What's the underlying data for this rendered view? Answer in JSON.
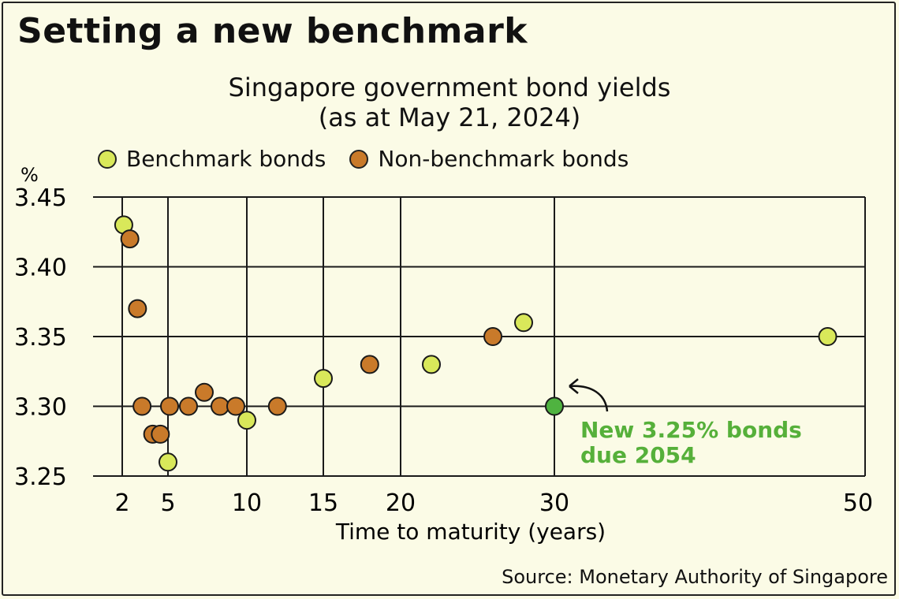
{
  "title": "Setting a new benchmark",
  "subtitle_line1": "Singapore government bond yields",
  "subtitle_line2": "(as at May 21, 2024)",
  "legend": {
    "benchmark": "Benchmark bonds",
    "non_benchmark": "Non-benchmark bonds"
  },
  "source": "Source: Monetary Authority of Singapore",
  "colors": {
    "benchmark": "#d9e85a",
    "non_benchmark": "#c97a2a",
    "highlight": "#4fb340",
    "annotation": "#56b03a"
  },
  "annotation": {
    "line1": "New 3.25% bonds",
    "line2": "due 2054"
  },
  "chart_data": {
    "type": "scatter",
    "xlabel": "Time to maturity (years)",
    "ylabel": "%",
    "xticks": [
      2,
      5,
      10,
      15,
      20,
      30,
      50
    ],
    "yticks": [
      "3.25",
      "3.30",
      "3.35",
      "3.40",
      "3.45"
    ],
    "ylim": [
      3.25,
      3.45
    ],
    "series": [
      {
        "name": "Benchmark bonds",
        "points": [
          [
            2.1,
            3.43
          ],
          [
            5,
            3.26
          ],
          [
            10,
            3.29
          ],
          [
            15,
            3.32
          ],
          [
            22,
            3.33
          ],
          [
            28,
            3.36
          ],
          [
            48,
            3.35
          ]
        ]
      },
      {
        "name": "Non-benchmark bonds",
        "points": [
          [
            2.5,
            3.42
          ],
          [
            3,
            3.37
          ],
          [
            3.3,
            3.3
          ],
          [
            4,
            3.28
          ],
          [
            4.5,
            3.28
          ],
          [
            5.1,
            3.3
          ],
          [
            6.3,
            3.3
          ],
          [
            7.3,
            3.31
          ],
          [
            8.3,
            3.3
          ],
          [
            9.3,
            3.3
          ],
          [
            12,
            3.3
          ],
          [
            18,
            3.33
          ],
          [
            26,
            3.35
          ]
        ]
      },
      {
        "name": "New 3.25% bonds due 2054",
        "points": [
          [
            30,
            3.3
          ]
        ]
      }
    ]
  }
}
